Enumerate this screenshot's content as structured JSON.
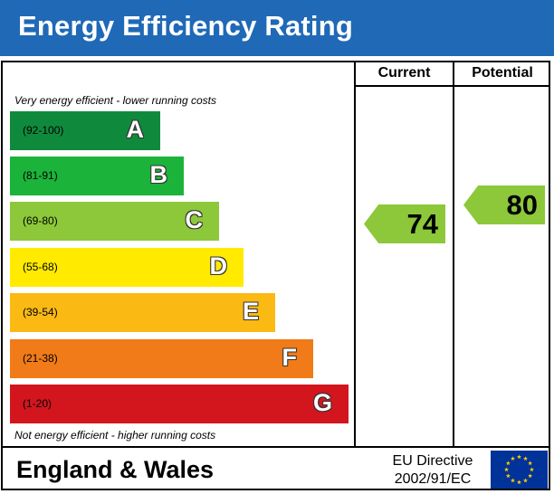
{
  "title": "Energy Efficiency Rating",
  "columns": {
    "current": "Current",
    "potential": "Potential"
  },
  "notes": {
    "top": "Very energy efficient - lower running costs",
    "bottom": "Not energy efficient - higher running costs"
  },
  "bands": [
    {
      "letter": "A",
      "range": "(92-100)",
      "color": "#0f8a3c"
    },
    {
      "letter": "B",
      "range": "(81-91)",
      "color": "#1bb33a"
    },
    {
      "letter": "C",
      "range": "(69-80)",
      "color": "#8cc83a"
    },
    {
      "letter": "D",
      "range": "(55-68)",
      "color": "#ffea00"
    },
    {
      "letter": "E",
      "range": "(39-54)",
      "color": "#fbb914"
    },
    {
      "letter": "F",
      "range": "(21-38)",
      "color": "#f07b18"
    },
    {
      "letter": "G",
      "range": "(1-20)",
      "color": "#d3151e"
    }
  ],
  "ratings": {
    "current": {
      "value": "74",
      "band": "C",
      "color": "#8cc83a"
    },
    "potential": {
      "value": "80",
      "band": "C",
      "color": "#8cc83a"
    }
  },
  "footer": {
    "region": "England & Wales",
    "directive_line1": "EU Directive",
    "directive_line2": "2002/91/EC",
    "flag_icon": "eu-flag-icon",
    "flag_color": "#003399",
    "star_color": "#ffcc00"
  },
  "header_color": "#1f69b7"
}
